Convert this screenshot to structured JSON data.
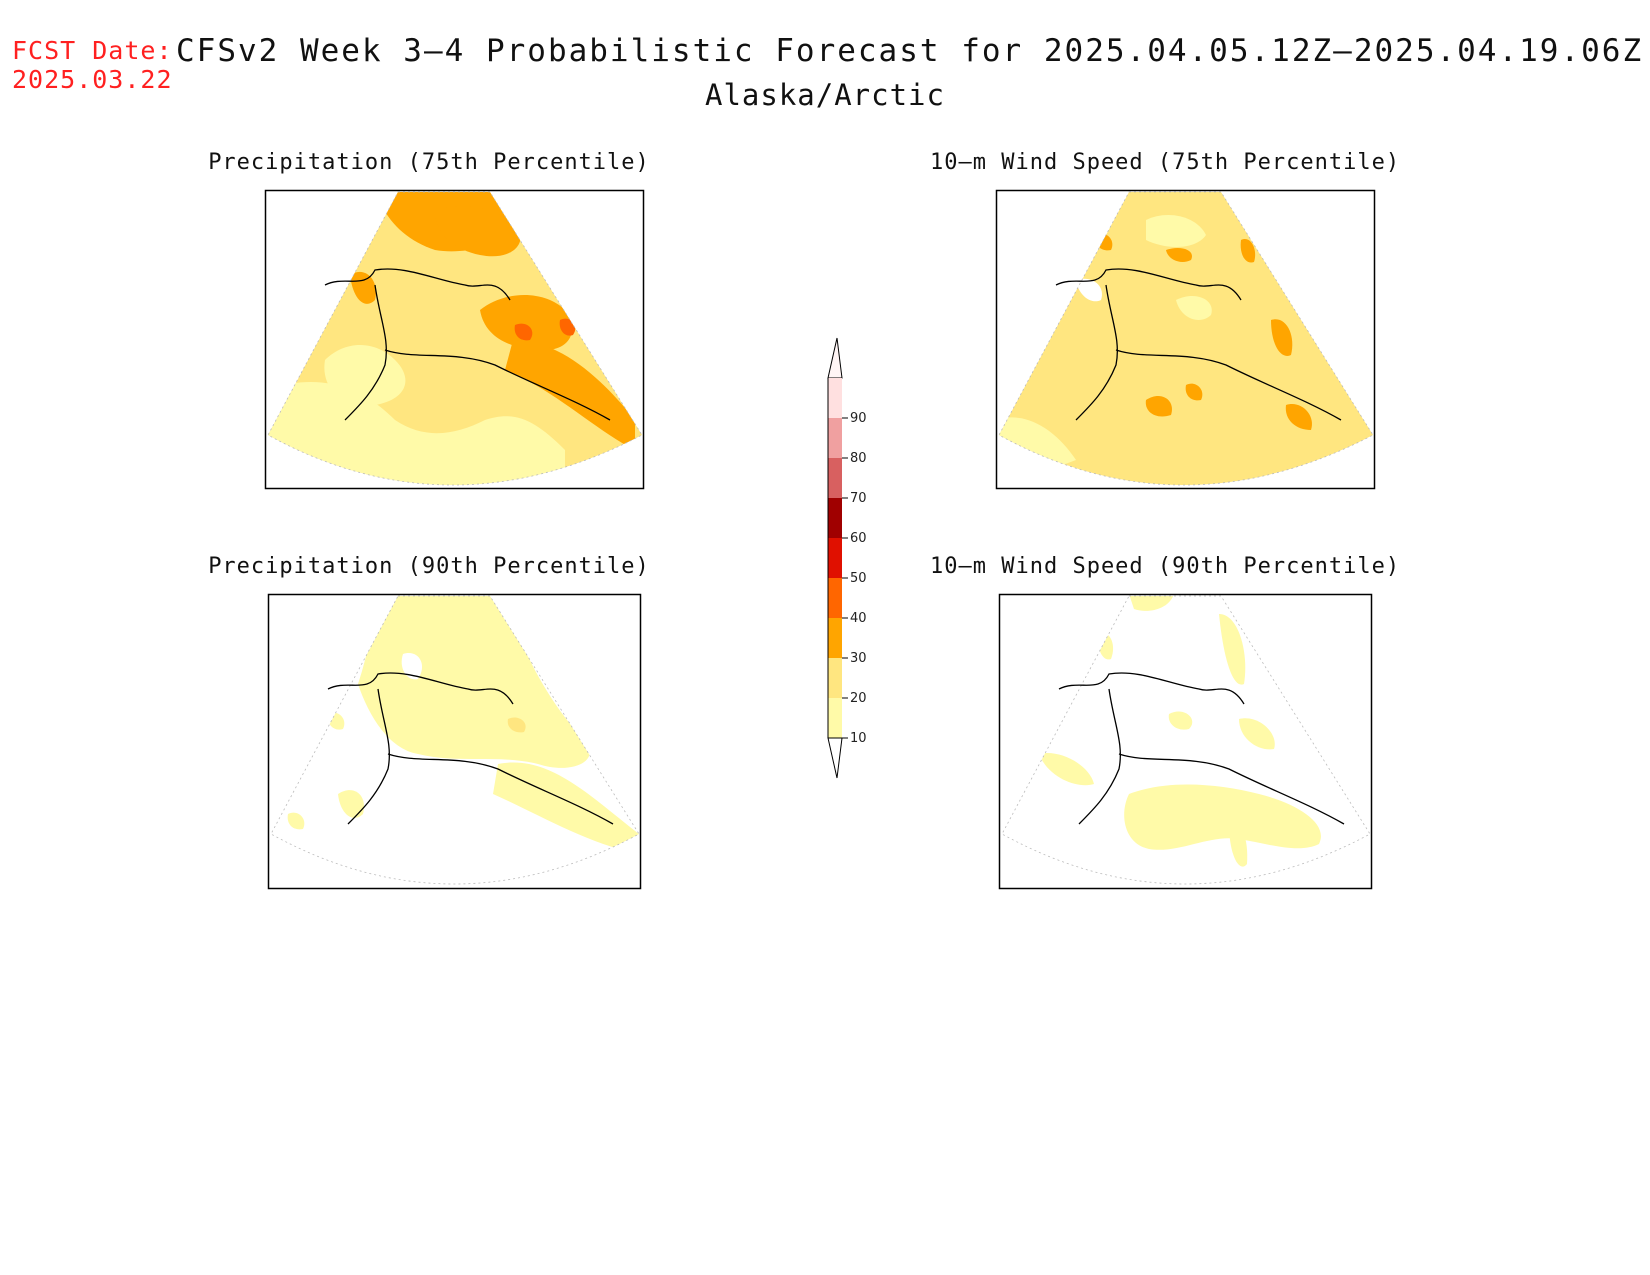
{
  "header": {
    "fcst_label": "FCST Date:",
    "fcst_date": "2025.03.22",
    "title": "CFSv2 Week 3–4 Probabilistic Forecast for 2025.04.05.12Z–2025.04.19.06Z",
    "region": "Alaska/Arctic"
  },
  "panels": [
    {
      "id": "precip75",
      "title": "Precipitation (75th Percentile)"
    },
    {
      "id": "wind75",
      "title": "10–m Wind Speed (75th Percentile)"
    },
    {
      "id": "precip90",
      "title": "Precipitation (90th Percentile)"
    },
    {
      "id": "wind90",
      "title": "10–m Wind Speed (90th Percentile)"
    }
  ],
  "legend": {
    "labels": [
      "90",
      "80",
      "70",
      "60",
      "50",
      "40",
      "30",
      "20",
      "10"
    ],
    "colors": {
      "10-20": "#fffaa8",
      "20-30": "#ffe680",
      "30-40": "#ffa500",
      "40-50": "#ff6600",
      "50-60": "#e01000",
      "60-70": "#a00000",
      "70-80": "#d86060",
      "80-90": "#f0a0a0",
      "90-100": "#ffe0e0"
    }
  }
}
